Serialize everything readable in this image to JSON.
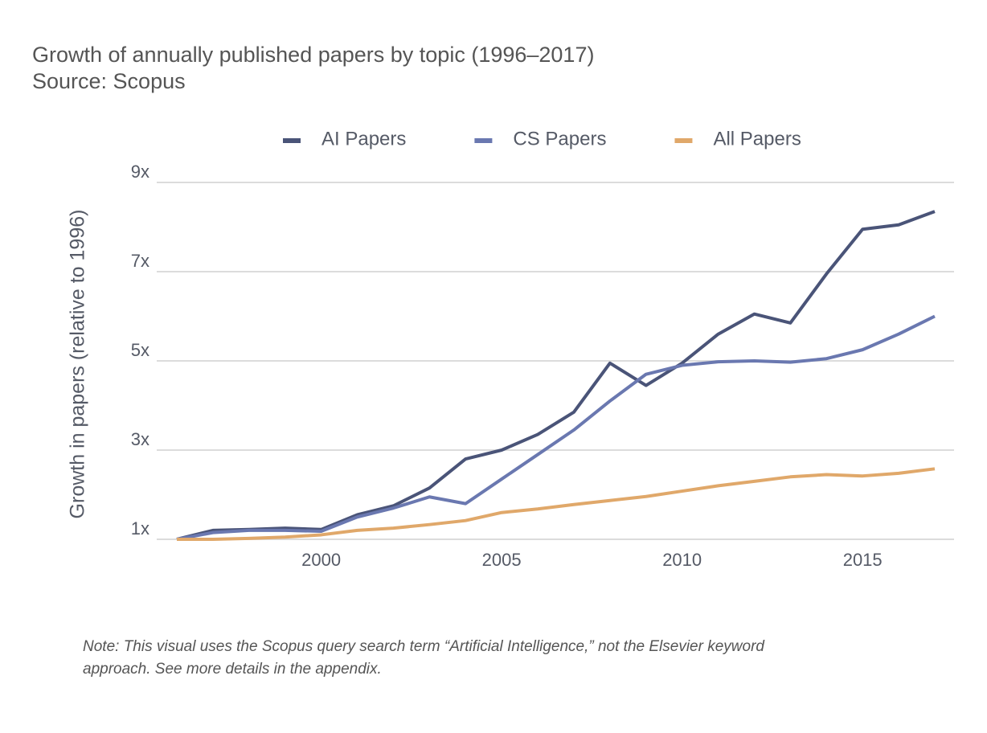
{
  "chart_data": {
    "type": "line",
    "title": "Growth of annually published papers by topic (1996–2017)",
    "subtitle": "Source: Scopus",
    "y_label": "Growth in papers (relative to 1996)",
    "note": [
      "Note: This visual uses the Scopus query search term “Artificial Intelligence,” not the Elsevier keyword",
      "approach. See more details in the appendix."
    ],
    "x": [
      1996,
      1997,
      1998,
      1999,
      2000,
      2001,
      2002,
      2003,
      2004,
      2005,
      2006,
      2007,
      2008,
      2009,
      2010,
      2011,
      2012,
      2013,
      2014,
      2015,
      2016,
      2017
    ],
    "series": [
      {
        "name": "AI Papers",
        "color": "#4a5478",
        "values": [
          1.0,
          1.2,
          1.22,
          1.25,
          1.22,
          1.55,
          1.75,
          2.15,
          2.8,
          3.0,
          3.35,
          3.85,
          4.95,
          4.45,
          4.95,
          5.6,
          6.05,
          5.85,
          6.95,
          7.95,
          8.05,
          8.35
        ]
      },
      {
        "name": "CS Papers",
        "color": "#6a78b0",
        "values": [
          1.0,
          1.15,
          1.2,
          1.2,
          1.18,
          1.5,
          1.7,
          1.95,
          1.8,
          2.35,
          2.9,
          3.45,
          4.1,
          4.7,
          4.9,
          4.98,
          5.0,
          4.97,
          5.05,
          5.25,
          5.6,
          6.0
        ]
      },
      {
        "name": "All Papers",
        "color": "#e0a86a",
        "values": [
          1.0,
          1.0,
          1.02,
          1.05,
          1.1,
          1.2,
          1.25,
          1.33,
          1.42,
          1.6,
          1.68,
          1.78,
          1.87,
          1.96,
          2.08,
          2.2,
          2.3,
          2.4,
          2.45,
          2.42,
          2.48,
          2.58
        ]
      }
    ],
    "xlim": [
      1996,
      2017
    ],
    "xticks": [
      2000,
      2005,
      2010,
      2015
    ],
    "ylim": [
      1,
      9
    ],
    "yticks": [
      {
        "value": 1,
        "label": "1x"
      },
      {
        "value": 3,
        "label": "3x"
      },
      {
        "value": 5,
        "label": "5x"
      },
      {
        "value": 7,
        "label": "7x"
      },
      {
        "value": 9,
        "label": "9x"
      }
    ],
    "grid": true,
    "legend": "top"
  }
}
